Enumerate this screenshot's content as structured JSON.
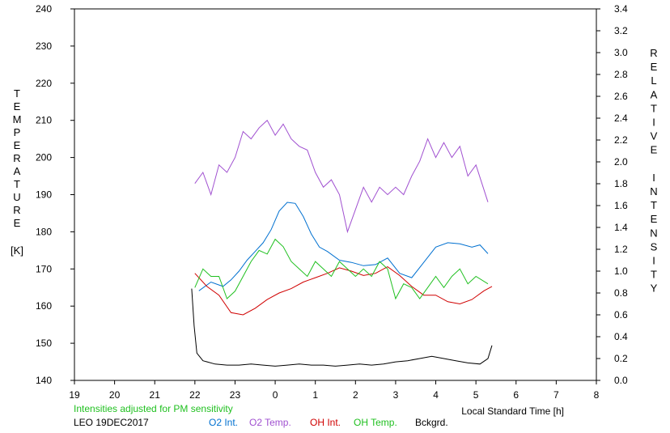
{
  "chart_data": {
    "type": "line",
    "xlabel": "Local Standard Time [h]",
    "ylabel_left": "TEMPERATURE",
    "ylabel_left_unit": "[K]",
    "ylabel_right": "RELATIVE INTENSITY",
    "xlim": [
      19,
      32
    ],
    "ylim_left": [
      140,
      240
    ],
    "ylim_right": [
      0.0,
      3.4
    ],
    "x_ticks": [
      "19",
      "20",
      "21",
      "22",
      "23",
      "0",
      "1",
      "2",
      "3",
      "4",
      "5",
      "6",
      "7",
      "8"
    ],
    "y_left_ticks": [
      "140",
      "150",
      "160",
      "170",
      "180",
      "190",
      "200",
      "210",
      "220",
      "230",
      "240"
    ],
    "y_right_ticks": [
      "0.0",
      "0.2",
      "0.4",
      "0.6",
      "0.8",
      "1.0",
      "1.2",
      "1.4",
      "1.6",
      "1.8",
      "2.0",
      "2.2",
      "2.4",
      "2.6",
      "2.8",
      "3.0",
      "3.2",
      "3.4"
    ],
    "note": "Intensities adjusted for PM sensitivity",
    "station": "LEO 19DEC2017",
    "grid": false,
    "series": [
      {
        "name": "O2 Int.",
        "color": "#0070d0",
        "axis": "right",
        "x": [
          22.1,
          22.4,
          22.7,
          22.9,
          23.1,
          23.3,
          23.5,
          23.7,
          23.9,
          24.1,
          24.3,
          24.5,
          24.7,
          24.9,
          25.1,
          25.3,
          25.6,
          25.9,
          26.2,
          26.5,
          26.8,
          27.1,
          27.4,
          27.7,
          28.0,
          28.3,
          28.6,
          28.9,
          29.1,
          29.3
        ],
        "y": [
          0.82,
          0.9,
          0.86,
          0.92,
          1.0,
          1.1,
          1.18,
          1.26,
          1.38,
          1.55,
          1.63,
          1.62,
          1.5,
          1.34,
          1.22,
          1.18,
          1.1,
          1.08,
          1.05,
          1.06,
          1.12,
          0.98,
          0.94,
          1.08,
          1.22,
          1.26,
          1.25,
          1.22,
          1.24,
          1.16
        ]
      },
      {
        "name": "O2 Temp.",
        "color": "#a050d0",
        "axis": "left",
        "x": [
          22.0,
          22.2,
          22.4,
          22.6,
          22.8,
          23.0,
          23.2,
          23.4,
          23.6,
          23.8,
          24.0,
          24.2,
          24.4,
          24.6,
          24.8,
          25.0,
          25.2,
          25.4,
          25.6,
          25.8,
          26.0,
          26.2,
          26.4,
          26.6,
          26.8,
          27.0,
          27.2,
          27.4,
          27.6,
          27.8,
          28.0,
          28.2,
          28.4,
          28.6,
          28.8,
          29.0,
          29.3
        ],
        "y": [
          193,
          196,
          190,
          198,
          196,
          200,
          207,
          205,
          208,
          210,
          206,
          209,
          205,
          203,
          202,
          196,
          192,
          194,
          190,
          180,
          186,
          192,
          188,
          192,
          190,
          192,
          190,
          195,
          199,
          205,
          200,
          204,
          200,
          203,
          195,
          198,
          188
        ]
      },
      {
        "name": "OH Int.",
        "color": "#d00000",
        "axis": "right",
        "x": [
          22.0,
          22.3,
          22.6,
          22.9,
          23.2,
          23.5,
          23.8,
          24.1,
          24.4,
          24.7,
          25.0,
          25.3,
          25.6,
          25.9,
          26.2,
          26.5,
          26.8,
          27.1,
          27.4,
          27.7,
          28.0,
          28.3,
          28.6,
          28.9,
          29.2,
          29.4
        ],
        "y": [
          0.98,
          0.86,
          0.78,
          0.62,
          0.6,
          0.66,
          0.74,
          0.8,
          0.84,
          0.9,
          0.94,
          0.98,
          1.03,
          1.0,
          0.96,
          0.98,
          1.04,
          0.96,
          0.86,
          0.78,
          0.78,
          0.72,
          0.7,
          0.74,
          0.82,
          0.86
        ]
      },
      {
        "name": "OH Temp.",
        "color": "#20c020",
        "axis": "left",
        "x": [
          22.0,
          22.2,
          22.4,
          22.6,
          22.8,
          23.0,
          23.2,
          23.4,
          23.6,
          23.8,
          24.0,
          24.2,
          24.4,
          24.6,
          24.8,
          25.0,
          25.2,
          25.4,
          25.6,
          25.8,
          26.0,
          26.2,
          26.4,
          26.6,
          26.8,
          27.0,
          27.2,
          27.4,
          27.6,
          27.8,
          28.0,
          28.2,
          28.4,
          28.6,
          28.8,
          29.0,
          29.3
        ],
        "y": [
          165,
          170,
          168,
          168,
          162,
          164,
          168,
          172,
          175,
          174,
          178,
          176,
          172,
          170,
          168,
          172,
          170,
          168,
          172,
          170,
          168,
          170,
          168,
          172,
          170,
          162,
          166,
          165,
          162,
          165,
          168,
          165,
          168,
          170,
          166,
          168,
          166
        ]
      },
      {
        "name": "Bckgrd.",
        "color": "#000000",
        "axis": "right",
        "x": [
          21.92,
          21.98,
          22.05,
          22.2,
          22.5,
          22.8,
          23.1,
          23.4,
          23.7,
          24.0,
          24.3,
          24.6,
          24.9,
          25.2,
          25.5,
          25.8,
          26.1,
          26.4,
          26.7,
          27.0,
          27.3,
          27.6,
          27.9,
          28.2,
          28.5,
          28.8,
          29.1,
          29.3,
          29.4
        ],
        "y": [
          0.84,
          0.5,
          0.25,
          0.18,
          0.15,
          0.14,
          0.14,
          0.15,
          0.14,
          0.13,
          0.14,
          0.15,
          0.14,
          0.14,
          0.13,
          0.14,
          0.15,
          0.14,
          0.15,
          0.17,
          0.18,
          0.2,
          0.22,
          0.2,
          0.18,
          0.16,
          0.15,
          0.2,
          0.32
        ]
      }
    ]
  }
}
